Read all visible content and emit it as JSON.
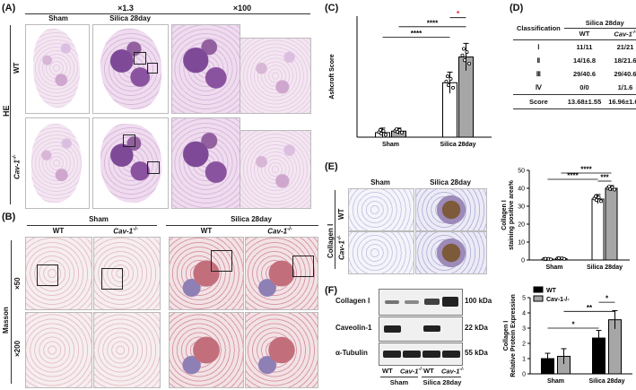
{
  "panel_a": {
    "label": "(A)",
    "mag_low": "×1.3",
    "mag_high": "×100",
    "stain": "HE",
    "col_sham": "Sham",
    "col_silica": "Silica 28day",
    "row_wt": "WT",
    "row_cav": "Cav-1",
    "row_cav_sup": "-/-"
  },
  "panel_b": {
    "label": "(B)",
    "stain": "Masson",
    "group_sham": "Sham",
    "group_silica": "Silica 28day",
    "col_wt": "WT",
    "col_cav": "Cav-1",
    "col_cav_sup": "-/-",
    "mag_low": "×50",
    "mag_high": "×200"
  },
  "panel_c": {
    "label": "(C)",
    "significance": [
      "****",
      "****",
      "*"
    ]
  },
  "panel_d": {
    "label": "(D)",
    "header_group": "Silica 28day",
    "col_class": "Classification",
    "col_wt": "WT",
    "col_cav": "Cav-1",
    "col_cav_sup": "-/-",
    "rows": [
      {
        "cls": "Ⅰ",
        "wt": "11/11",
        "cav": "21/21"
      },
      {
        "cls": "Ⅱ",
        "wt": "14/16.8",
        "cav": "18/21.6"
      },
      {
        "cls": "Ⅲ",
        "wt": "29/40.6",
        "cav": "29/40.6"
      },
      {
        "cls": "Ⅳ",
        "wt": "0/0",
        "cav": "1/1.6"
      },
      {
        "cls": "Score",
        "wt": "13.68±1.55",
        "cav": "16.96±1.67"
      }
    ]
  },
  "panel_e": {
    "label": "(E)",
    "stain": "Collagen Ⅰ",
    "col_sham": "Sham",
    "col_silica": "Silica 28day",
    "row_wt": "WT",
    "row_cav": "Cav-1",
    "row_cav_sup": "-/-",
    "significance": [
      "****",
      "****",
      "***"
    ]
  },
  "panel_f": {
    "label": "(F)",
    "proteins": [
      {
        "name": "Collagen Ⅰ",
        "kda": "100 kDa"
      },
      {
        "name": "Caveolin-1",
        "kda": "22 kDa"
      },
      {
        "name": "α-Tubulin",
        "kda": "55 kDa"
      }
    ],
    "lanes": [
      "WT",
      "Cav-1",
      "WT",
      "Cav-1"
    ],
    "lane_sup": "-/-",
    "group_sham": "Sham",
    "group_silica": "Silica 28day",
    "significance": [
      "*",
      "**",
      "*"
    ]
  },
  "colors": {
    "wt_bar": "#ffffff",
    "cav_bar": "#a6a6a6",
    "wt_bar_f": "#000000",
    "cav_bar_f": "#a6a6a6",
    "sig_red": "#e0202a"
  },
  "chart_data": [
    {
      "id": "C",
      "type": "bar",
      "categories": [
        "Sham",
        "Silica 28day"
      ],
      "ylabel": "Ashcroft Score",
      "ylim": [
        0,
        8
      ],
      "yticks": [],
      "legend": "none",
      "series": [
        {
          "name": "WT",
          "values": [
            0.3,
            3.6
          ],
          "errors": [
            0.3,
            0.7
          ]
        },
        {
          "name": "Cav-1-/-",
          "values": [
            0.4,
            5.3
          ],
          "errors": [
            0.2,
            0.9
          ]
        }
      ]
    },
    {
      "id": "E",
      "type": "bar",
      "categories": [
        "Sham",
        "Silica 28day"
      ],
      "ylabel": "Collagen Ⅰ staining positive area%",
      "ylim": [
        0,
        50
      ],
      "yticks": [
        "0",
        "10",
        "20",
        "30",
        "40",
        "50"
      ],
      "legend": "none",
      "series": [
        {
          "name": "WT",
          "values": [
            0.5,
            34
          ],
          "errors": [
            0.3,
            2.5
          ]
        },
        {
          "name": "Cav-1-/-",
          "values": [
            0.8,
            40
          ],
          "errors": [
            0.4,
            1.5
          ]
        }
      ]
    },
    {
      "id": "F",
      "type": "bar",
      "categories": [
        "Sham",
        "Silica 28day"
      ],
      "ylabel": "Collagen Ⅰ Relative Protein Expression",
      "ylim": [
        0,
        5
      ],
      "yticks": [
        "0",
        "1",
        "2",
        "3",
        "4",
        "5"
      ],
      "legend": "top-left",
      "series": [
        {
          "name": "WT",
          "values": [
            1.0,
            2.35
          ],
          "errors": [
            0.35,
            0.5
          ]
        },
        {
          "name": "Cav-1-/-",
          "values": [
            1.15,
            3.55
          ],
          "errors": [
            0.5,
            0.6
          ]
        }
      ]
    }
  ]
}
